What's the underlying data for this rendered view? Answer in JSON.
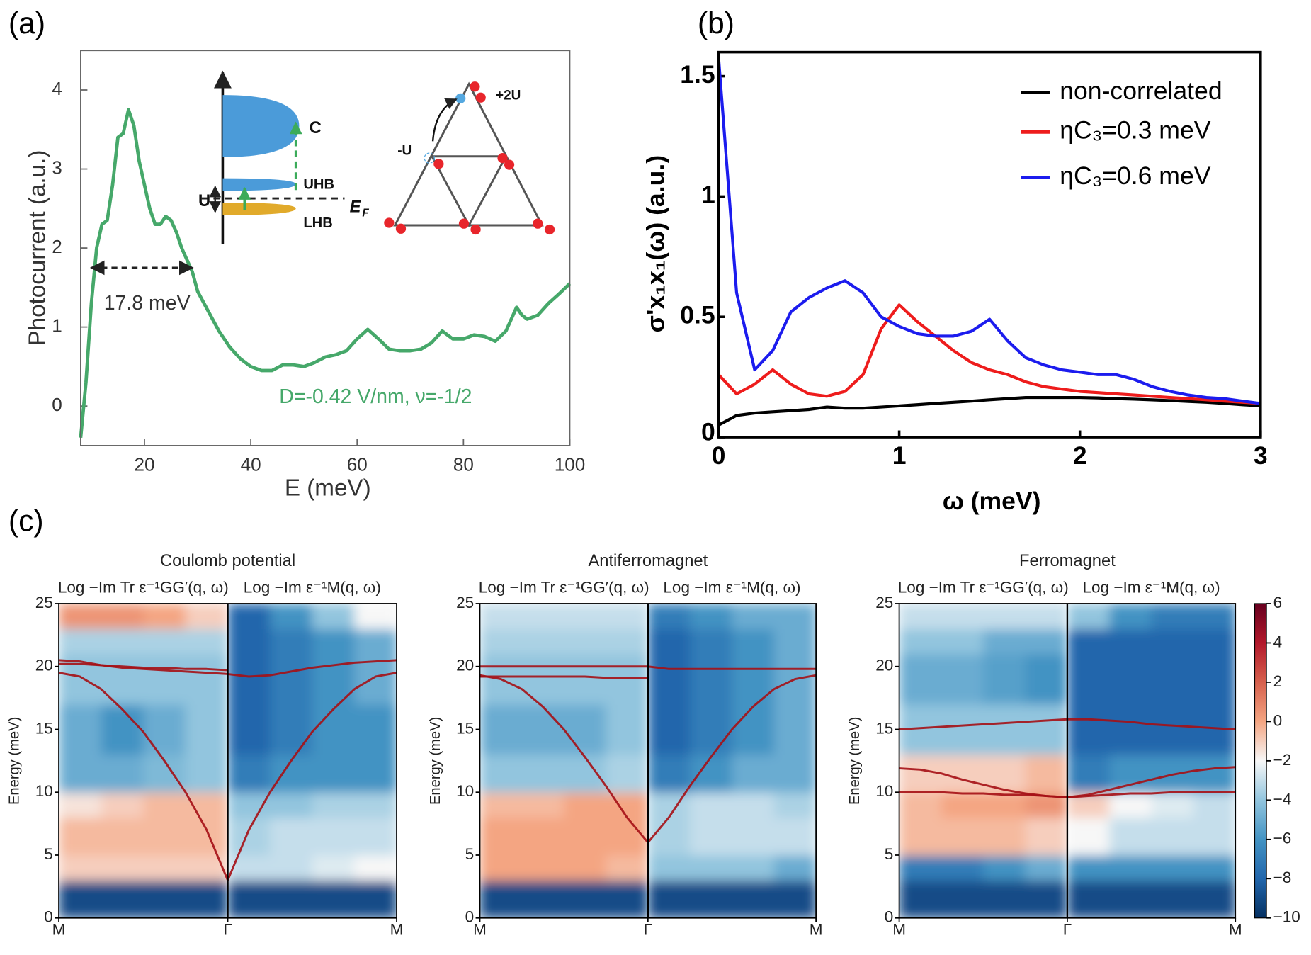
{
  "chart_data": [
    {
      "type": "line",
      "panel_label": "(a)",
      "x_label": "E (meV)",
      "y_label": "Photocurrent (a.u.)",
      "xlim": [
        8,
        100
      ],
      "ylim": [
        -0.5,
        4.5
      ],
      "xticks": [
        20,
        40,
        60,
        80,
        100
      ],
      "yticks": [
        0,
        1,
        2,
        3,
        4
      ],
      "color": "#46a86a",
      "x": [
        8,
        9,
        10,
        11,
        12,
        13,
        14,
        15,
        16,
        17,
        18,
        19,
        20,
        21,
        22,
        23,
        24,
        25,
        26,
        27,
        28,
        29,
        30,
        32,
        34,
        36,
        38,
        40,
        42,
        44,
        46,
        48,
        50,
        52,
        54,
        56,
        58,
        60,
        62,
        64,
        66,
        68,
        70,
        72,
        74,
        76,
        78,
        80,
        82,
        84,
        86,
        88,
        90,
        91,
        92,
        94,
        96,
        98,
        100
      ],
      "values": [
        -0.4,
        0.3,
        1.3,
        2.0,
        2.3,
        2.35,
        2.8,
        3.4,
        3.45,
        3.75,
        3.55,
        3.1,
        2.8,
        2.5,
        2.3,
        2.3,
        2.4,
        2.35,
        2.2,
        2.0,
        1.85,
        1.7,
        1.45,
        1.2,
        0.95,
        0.75,
        0.6,
        0.5,
        0.45,
        0.45,
        0.52,
        0.52,
        0.5,
        0.55,
        0.62,
        0.65,
        0.7,
        0.85,
        0.97,
        0.85,
        0.72,
        0.7,
        0.7,
        0.72,
        0.8,
        0.95,
        0.85,
        0.85,
        0.9,
        0.88,
        0.82,
        0.95,
        1.25,
        1.15,
        1.1,
        1.15,
        1.3,
        1.42,
        1.55
      ],
      "annotations": [
        "17.8 meV",
        "D=-0.42 V/nm, ν=-1/2"
      ],
      "inset_labels": [
        "C",
        "UHB",
        "LHB",
        "U",
        "E",
        "F",
        "-U",
        "+2U"
      ]
    },
    {
      "type": "line",
      "panel_label": "(b)",
      "x_label": "ω (meV)",
      "y_label": "σ'x₁x₁(ω) (a.u.)",
      "xlim": [
        0,
        3
      ],
      "ylim": [
        0,
        1.6
      ],
      "xticks": [
        0,
        1,
        2,
        3
      ],
      "yticks": [
        0,
        0.5,
        1,
        1.5
      ],
      "legend": "upper right",
      "x": [
        0,
        0.1,
        0.2,
        0.3,
        0.4,
        0.5,
        0.6,
        0.7,
        0.8,
        0.9,
        1.0,
        1.1,
        1.2,
        1.3,
        1.4,
        1.5,
        1.6,
        1.7,
        1.8,
        1.9,
        2.0,
        2.1,
        2.2,
        2.3,
        2.4,
        2.5,
        2.6,
        2.7,
        2.8,
        2.9,
        3.0
      ],
      "series": [
        {
          "name": "non-correlated",
          "color": "#000000",
          "values": [
            0.05,
            0.09,
            0.1,
            0.105,
            0.11,
            0.115,
            0.125,
            0.12,
            0.12,
            0.125,
            0.13,
            0.135,
            0.14,
            0.145,
            0.15,
            0.155,
            0.16,
            0.165,
            0.165,
            0.165,
            0.165,
            0.163,
            0.16,
            0.158,
            0.155,
            0.152,
            0.148,
            0.145,
            0.14,
            0.135,
            0.13
          ]
        },
        {
          "name": "ηC₃=0.3 meV",
          "color": "#ee1c1c",
          "values": [
            0.26,
            0.18,
            0.22,
            0.28,
            0.22,
            0.18,
            0.17,
            0.19,
            0.26,
            0.45,
            0.55,
            0.48,
            0.42,
            0.36,
            0.31,
            0.28,
            0.26,
            0.23,
            0.21,
            0.2,
            0.19,
            0.185,
            0.18,
            0.175,
            0.17,
            0.165,
            0.16,
            0.155,
            0.15,
            0.145,
            0.14
          ]
        },
        {
          "name": "ηC₃=0.6 meV",
          "color": "#1c1cee",
          "values": [
            1.58,
            0.6,
            0.28,
            0.36,
            0.52,
            0.58,
            0.62,
            0.65,
            0.6,
            0.5,
            0.46,
            0.43,
            0.42,
            0.42,
            0.44,
            0.49,
            0.4,
            0.33,
            0.3,
            0.28,
            0.27,
            0.26,
            0.26,
            0.24,
            0.21,
            0.19,
            0.175,
            0.165,
            0.16,
            0.15,
            0.14
          ]
        }
      ]
    },
    {
      "type": "heatmap",
      "panel_label": "(c)",
      "title": "Coulomb potential",
      "column_titles": [
        "Log −Im Tr ε⁻¹GG′(q, ω)",
        "Log −Im ε⁻¹M(q, ω)"
      ],
      "y_label": "Energy (meV)",
      "xlim": [
        0,
        2
      ],
      "ylim": [
        0,
        25
      ],
      "yticks": [
        0,
        5,
        10,
        15,
        20,
        25
      ],
      "xticks": [
        {
          "value": 0,
          "label": "M"
        },
        {
          "value": 1,
          "label": "Γ"
        },
        {
          "value": 2,
          "label": "M"
        }
      ],
      "x_bins": [
        0,
        0.25,
        0.5,
        0.75,
        1,
        1.25,
        1.5,
        1.75,
        2
      ],
      "y_bins": [
        0,
        3,
        5,
        8,
        10,
        13,
        17,
        21,
        23,
        25
      ],
      "z": [
        [
          -9,
          -9,
          -9,
          -9,
          -9,
          -9,
          -9,
          -9
        ],
        [
          -1,
          -1,
          -1,
          -1,
          -3,
          -3,
          -2.5,
          -2
        ],
        [
          -0.5,
          -0.5,
          -0.5,
          -0.5,
          -3.5,
          -3,
          -3,
          -3
        ],
        [
          -1.5,
          -1,
          -0.5,
          -0.5,
          -4,
          -4,
          -3.5,
          -3.5
        ],
        [
          -5,
          -5,
          -4.5,
          -4,
          -7,
          -6,
          -6,
          -6
        ],
        [
          -5,
          -6,
          -5,
          -4,
          -8,
          -7,
          -6,
          -6
        ],
        [
          -4,
          -4,
          -4,
          -4,
          -8,
          -7,
          -6,
          -5
        ],
        [
          -3.5,
          -3.5,
          -3.5,
          -3.5,
          -8,
          -7,
          -6,
          -5
        ],
        [
          0.5,
          0.5,
          0,
          -1,
          -8,
          -6,
          -4,
          -2
        ]
      ],
      "zlim": [
        -10,
        6
      ],
      "colormap": [
        "#053061",
        "#2166ac",
        "#4393c3",
        "#92c5de",
        "#f7f7f7",
        "#f4a582",
        "#d6604d",
        "#b2182b",
        "#67001f"
      ],
      "mode_color": "#a50f15",
      "mode_x": [
        0,
        0.125,
        0.25,
        0.375,
        0.5,
        0.625,
        0.75,
        0.875,
        1,
        1.125,
        1.25,
        1.375,
        1.5,
        1.625,
        1.75,
        1.875,
        2
      ],
      "modes": [
        {
          "values": [
            19.5,
            19.2,
            18.2,
            16.6,
            14.8,
            12.5,
            10,
            7,
            3,
            7,
            10,
            12.5,
            14.8,
            16.6,
            18.2,
            19.2,
            19.5
          ]
        },
        {
          "values": [
            20.5,
            20.4,
            20.1,
            19.9,
            19.8,
            19.7,
            19.6,
            19.5,
            19.4,
            19.2,
            19.3,
            19.6,
            19.9,
            20.1,
            20.3,
            20.4,
            20.5
          ]
        },
        {
          "values": [
            20.2,
            20.2,
            20.1,
            20,
            19.9,
            19.9,
            19.8,
            19.8,
            19.7,
            null,
            null,
            null,
            null,
            null,
            null,
            null,
            null
          ]
        }
      ],
      "colorbar": false
    },
    {
      "type": "heatmap",
      "title": "Antiferromagnet",
      "column_titles": [
        "Log −Im Tr ε⁻¹GG′(q, ω)",
        "Log −Im ε⁻¹M(q, ω)"
      ],
      "y_label": "Energy (meV)",
      "xlim": [
        0,
        2
      ],
      "ylim": [
        0,
        25
      ],
      "yticks": [
        0,
        5,
        10,
        15,
        20,
        25
      ],
      "xticks": [
        {
          "value": 0,
          "label": "M"
        },
        {
          "value": 1,
          "label": "Γ"
        },
        {
          "value": 2,
          "label": "M"
        }
      ],
      "x_bins": [
        0,
        0.25,
        0.5,
        0.75,
        1,
        1.25,
        1.5,
        1.75,
        2
      ],
      "y_bins": [
        0,
        3,
        5,
        8,
        10,
        13,
        17,
        21,
        23,
        25
      ],
      "z": [
        [
          -9,
          -9,
          -9,
          -9,
          -9,
          -9,
          -9,
          -9
        ],
        [
          0,
          0,
          0,
          -0.5,
          -4,
          -4,
          -4,
          -5
        ],
        [
          0,
          0,
          0,
          0,
          -3.5,
          -3,
          -3,
          -3
        ],
        [
          -0.5,
          -0.5,
          0,
          0,
          -3.5,
          -3,
          -3,
          -3.5
        ],
        [
          -4,
          -4,
          -4,
          -3.5,
          -7,
          -6,
          -5,
          -5
        ],
        [
          -5,
          -5,
          -5,
          -4,
          -8,
          -7,
          -6,
          -5
        ],
        [
          -4,
          -4,
          -4,
          -4,
          -8,
          -7,
          -6,
          -5
        ],
        [
          -3.5,
          -3.5,
          -3.5,
          -3.5,
          -8,
          -7,
          -6,
          -5
        ],
        [
          -3,
          -3,
          -3,
          -3,
          -7,
          -6,
          -5,
          -5
        ]
      ],
      "zlim": [
        -10,
        6
      ],
      "colormap": [
        "#053061",
        "#2166ac",
        "#4393c3",
        "#92c5de",
        "#f7f7f7",
        "#f4a582",
        "#d6604d",
        "#b2182b",
        "#67001f"
      ],
      "mode_color": "#a50f15",
      "mode_x": [
        0,
        0.125,
        0.25,
        0.375,
        0.5,
        0.625,
        0.75,
        0.875,
        1,
        1.125,
        1.25,
        1.375,
        1.5,
        1.625,
        1.75,
        1.875,
        2
      ],
      "modes": [
        {
          "values": [
            19.3,
            19,
            18.2,
            16.8,
            15,
            12.8,
            10.5,
            8,
            6,
            8,
            10.5,
            12.8,
            15,
            16.8,
            18.2,
            19,
            19.3
          ]
        },
        {
          "values": [
            20,
            20,
            20,
            20,
            20,
            20,
            20,
            20,
            20,
            19.8,
            19.8,
            19.8,
            19.8,
            19.8,
            19.8,
            19.8,
            19.8
          ]
        },
        {
          "values": [
            19.2,
            19.2,
            19.2,
            19.2,
            19.2,
            19.2,
            19.1,
            19.1,
            19.1,
            null,
            null,
            null,
            null,
            null,
            null,
            null,
            null
          ]
        }
      ],
      "colorbar": false
    },
    {
      "type": "heatmap",
      "title": "Ferromagnet",
      "column_titles": [
        "Log −Im Tr ε⁻¹GG′(q, ω)",
        "Log −Im ε⁻¹M(q, ω)"
      ],
      "y_label": "Energy (meV)",
      "xlim": [
        0,
        2
      ],
      "ylim": [
        0,
        25
      ],
      "yticks": [
        0,
        5,
        10,
        15,
        20,
        25
      ],
      "xticks": [
        {
          "value": 0,
          "label": "M"
        },
        {
          "value": 1,
          "label": "Γ"
        },
        {
          "value": 2,
          "label": "M"
        }
      ],
      "x_bins": [
        0,
        0.25,
        0.5,
        0.75,
        1,
        1.25,
        1.5,
        1.75,
        2
      ],
      "y_bins": [
        0,
        3,
        5,
        8,
        10,
        13,
        17,
        21,
        23,
        25
      ],
      "z": [
        [
          -9,
          -9,
          -9,
          -9,
          -9,
          -9,
          -9,
          -9
        ],
        [
          -7,
          -7,
          -6,
          -5,
          -6,
          -6,
          -6,
          -6
        ],
        [
          -0.5,
          -0.5,
          -0.5,
          -1,
          -2,
          -3,
          -3,
          -3
        ],
        [
          -0.5,
          0,
          0,
          0.5,
          -1,
          -2,
          -2.5,
          -3
        ],
        [
          -1,
          -1,
          -1,
          -0.5,
          -7,
          -6,
          -6,
          -6
        ],
        [
          -4,
          -4,
          -4,
          -4,
          -8,
          -8,
          -8,
          -8
        ],
        [
          -5,
          -5,
          -5.5,
          -6,
          -8,
          -8,
          -8,
          -8
        ],
        [
          -4,
          -4,
          -5,
          -5,
          -8,
          -8,
          -8,
          -8
        ],
        [
          -3,
          -3,
          -3,
          -3,
          -4,
          -6,
          -7,
          -7
        ]
      ],
      "zlim": [
        -10,
        6
      ],
      "colormap": [
        "#053061",
        "#2166ac",
        "#4393c3",
        "#92c5de",
        "#f7f7f7",
        "#f4a582",
        "#d6604d",
        "#b2182b",
        "#67001f"
      ],
      "mode_color": "#a50f15",
      "mode_x": [
        0,
        0.125,
        0.25,
        0.375,
        0.5,
        0.625,
        0.75,
        0.875,
        1,
        1.125,
        1.25,
        1.375,
        1.5,
        1.625,
        1.75,
        1.875,
        2
      ],
      "modes": [
        {
          "values": [
            15,
            15.1,
            15.2,
            15.3,
            15.4,
            15.5,
            15.6,
            15.7,
            15.8,
            15.8,
            15.7,
            15.6,
            15.4,
            15.3,
            15.2,
            15.1,
            15
          ]
        },
        {
          "values": [
            11.9,
            11.8,
            11.5,
            11,
            10.6,
            10.2,
            9.9,
            9.7,
            9.6,
            9.8,
            10.2,
            10.6,
            11,
            11.4,
            11.7,
            11.9,
            12
          ]
        },
        {
          "values": [
            10,
            10,
            10,
            9.9,
            9.9,
            9.8,
            9.8,
            9.7,
            9.6,
            9.7,
            9.8,
            9.9,
            9.9,
            10,
            10,
            10,
            10
          ]
        }
      ],
      "colorbar": true,
      "cticks": [
        6,
        4,
        2,
        0,
        {
          "value": -2,
          "label": "−2"
        },
        {
          "value": -4,
          "label": "−4"
        },
        {
          "value": -6,
          "label": "−6"
        },
        {
          "value": -8,
          "label": "−8"
        },
        {
          "value": -10,
          "label": "−10"
        }
      ]
    }
  ]
}
